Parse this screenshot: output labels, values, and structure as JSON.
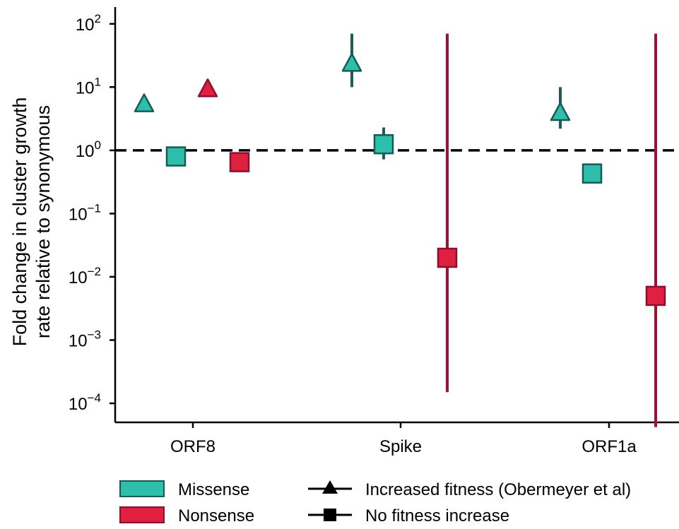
{
  "chart_data": {
    "type": "scatter",
    "ylabel_lines": [
      "Fold change in cluster growth",
      "rate relative to synonymous"
    ],
    "xlabel": "",
    "yscale": "log",
    "ylim": [
      5e-05,
      150
    ],
    "reference_line": 1,
    "categories": [
      "ORF8",
      "Spike",
      "ORF1a"
    ],
    "y_ticks": [
      {
        "value": 100,
        "base": "10",
        "exp": "2"
      },
      {
        "value": 10,
        "base": "10",
        "exp": "1"
      },
      {
        "value": 1,
        "base": "10",
        "exp": "0"
      },
      {
        "value": 0.1,
        "base": "10",
        "exp": "−1"
      },
      {
        "value": 0.01,
        "base": "10",
        "exp": "−2"
      },
      {
        "value": 0.001,
        "base": "10",
        "exp": "−3"
      },
      {
        "value": 0.0001,
        "base": "10",
        "exp": "−4"
      }
    ],
    "points": [
      {
        "category": "ORF8",
        "slot": 0,
        "type": "Missense",
        "shape": "triangle",
        "y": 5.5
      },
      {
        "category": "ORF8",
        "slot": 1,
        "type": "Missense",
        "shape": "square",
        "y": 0.8
      },
      {
        "category": "ORF8",
        "slot": 2,
        "type": "Nonsense",
        "shape": "triangle",
        "y": 9.5
      },
      {
        "category": "ORF8",
        "slot": 3,
        "type": "Nonsense",
        "shape": "square",
        "y": 0.65
      },
      {
        "category": "Spike",
        "slot": 0,
        "type": "Missense",
        "shape": "triangle",
        "y": 24,
        "lo": 10,
        "hi": 70
      },
      {
        "category": "Spike",
        "slot": 1,
        "type": "Missense",
        "shape": "square",
        "y": 1.25,
        "lo": 0.72,
        "hi": 2.3
      },
      {
        "category": "Spike",
        "slot": 3,
        "type": "Nonsense",
        "shape": "square",
        "y": 0.02,
        "lo": 0.00015,
        "hi": 70
      },
      {
        "category": "ORF1a",
        "slot": 0,
        "type": "Missense",
        "shape": "triangle",
        "y": 4,
        "lo": 2.2,
        "hi": 10
      },
      {
        "category": "ORF1a",
        "slot": 1,
        "type": "Missense",
        "shape": "square",
        "y": 0.43
      },
      {
        "category": "ORF1a",
        "slot": 3,
        "type": "Nonsense",
        "shape": "square",
        "y": 0.005,
        "lo": 4.2e-05,
        "hi": 70
      }
    ],
    "grid": false
  },
  "legend": {
    "fill_items": [
      {
        "label": "Missense",
        "color": "#2ebfac"
      },
      {
        "label": "Nonsense",
        "color": "#e02040"
      }
    ],
    "shape_items": [
      {
        "label": "Increased fitness (Obermeyer et al)",
        "shape": "triangle"
      },
      {
        "label": "No fitness increase",
        "shape": "square"
      }
    ]
  },
  "colors": {
    "Missense": {
      "fill": "#2ebfac",
      "stroke": "#145c52",
      "errorbar": "#1f5c54"
    },
    "Nonsense": {
      "fill": "#e02040",
      "stroke": "#8a1030",
      "errorbar": "#9b1235"
    }
  }
}
